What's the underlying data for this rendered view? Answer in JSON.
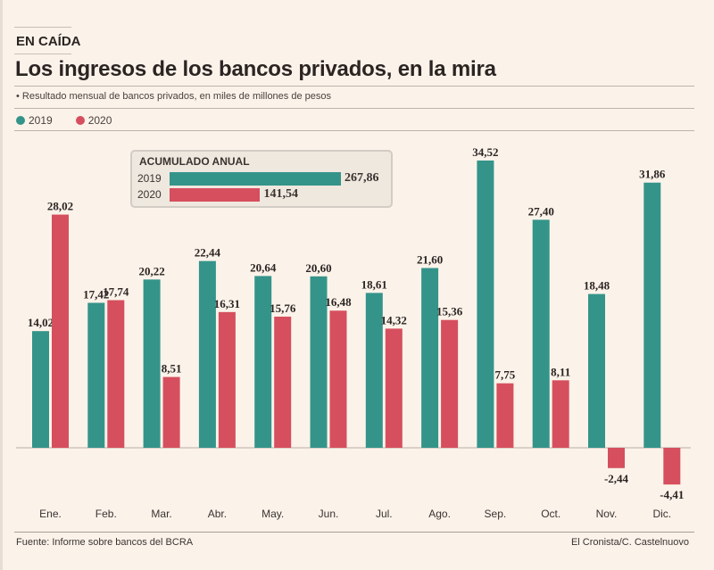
{
  "header": {
    "kicker": "EN CAÍDA",
    "title": "Los ingresos de los bancos privados, en la mira",
    "subtitle": "• Resultado mensual de bancos privados, en miles de millones de pesos"
  },
  "legend": [
    {
      "label": "2019",
      "color": "#34948a"
    },
    {
      "label": "2020",
      "color": "#d64f5e"
    }
  ],
  "accumulated": {
    "title": "ACUMULADO ANUAL",
    "rows": [
      {
        "year": "2019",
        "value": 267.86,
        "label": "267,86",
        "color": "#34948a"
      },
      {
        "year": "2020",
        "value": 141.54,
        "label": "141,54",
        "color": "#d64f5e"
      }
    ]
  },
  "chart_data": {
    "type": "bar",
    "title": "Los ingresos de los bancos privados, en la mira",
    "subtitle": "Resultado mensual de bancos privados, en miles de millones de pesos",
    "xlabel": "",
    "ylabel": "",
    "categories": [
      "Ene.",
      "Feb.",
      "Mar.",
      "Abr.",
      "May.",
      "Jun.",
      "Jul.",
      "Ago.",
      "Sep.",
      "Oct.",
      "Nov.",
      "Dic."
    ],
    "series": [
      {
        "name": "2019",
        "color": "#34948a",
        "values": [
          14.02,
          17.42,
          20.22,
          22.44,
          20.64,
          20.6,
          18.61,
          21.6,
          34.52,
          27.4,
          18.48,
          31.86
        ],
        "labels": [
          "14,02",
          "17,42",
          "20,22",
          "22,44",
          "20,64",
          "20,60",
          "18,61",
          "21,60",
          "34,52",
          "27,40",
          "18,48",
          "31,86"
        ]
      },
      {
        "name": "2020",
        "color": "#d64f5e",
        "values": [
          28.02,
          17.74,
          8.51,
          16.31,
          15.76,
          16.48,
          14.32,
          15.36,
          7.75,
          8.11,
          -2.44,
          -4.41
        ],
        "labels": [
          "28,02",
          "17,74",
          "8,51",
          "16,31",
          "15,76",
          "16,48",
          "14,32",
          "15,36",
          "7,75",
          "8,11",
          "-2,44",
          "-4,41"
        ]
      }
    ],
    "ylim": [
      -6,
      36
    ],
    "grid": false,
    "legend_position": "top-left",
    "data_labels": true
  },
  "footer": {
    "source": "Fuente: Informe sobre bancos del BCRA",
    "credit": "El Cronista/C. Castelnuovo"
  }
}
